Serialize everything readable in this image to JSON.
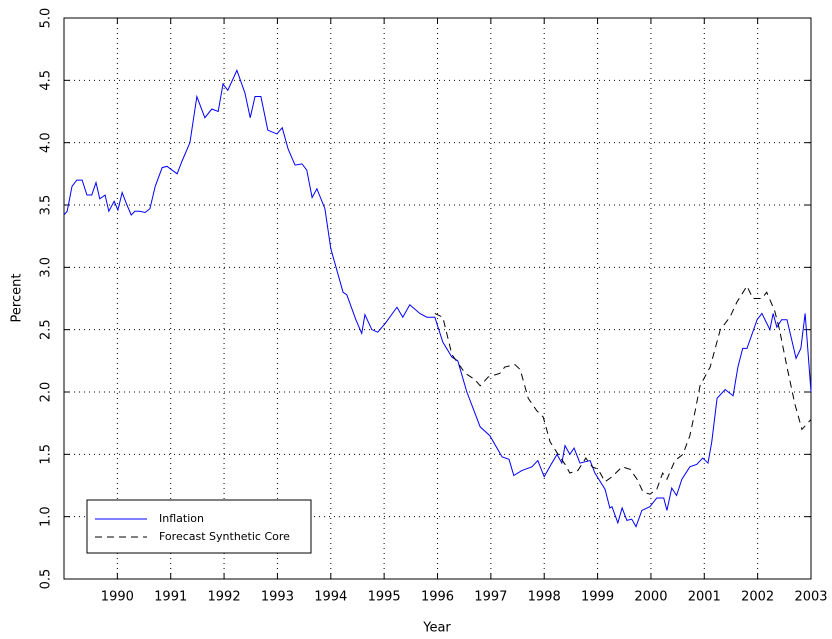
{
  "chart_data": {
    "type": "line",
    "x_label": "Year",
    "y_label": "Percent",
    "xlim": [
      1989,
      2003
    ],
    "xticks": [
      1990,
      1991,
      1992,
      1993,
      1994,
      1995,
      1996,
      1997,
      1998,
      1999,
      2000,
      2001,
      2002,
      2003
    ],
    "ylim": [
      0.5,
      5
    ],
    "yticks": [
      0.5,
      {
        "value": 1,
        "label": "1.0"
      },
      1.5,
      {
        "value": 2,
        "label": "2.0"
      },
      2.5,
      {
        "value": 3,
        "label": "3.0"
      },
      3.5,
      {
        "value": 4,
        "label": "4.0"
      },
      4.5,
      {
        "value": 5,
        "label": "5.0"
      }
    ],
    "grid": true,
    "legend": "lower left",
    "series": [
      {
        "name": "Inflation",
        "color": "#0000ff",
        "dash": "solid",
        "x": [
          1989.0,
          1989.06,
          1989.15,
          1989.24,
          1989.34,
          1989.43,
          1989.52,
          1989.6,
          1989.67,
          1989.77,
          1989.84,
          1989.94,
          1990.01,
          1990.09,
          1990.18,
          1990.26,
          1990.33,
          1990.42,
          1990.52,
          1990.61,
          1990.71,
          1990.84,
          1990.93,
          1991.12,
          1991.21,
          1991.36,
          1991.49,
          1991.64,
          1991.77,
          1991.89,
          1991.98,
          1992.07,
          1992.24,
          1992.39,
          1992.49,
          1992.58,
          1992.69,
          1992.82,
          1992.99,
          1993.09,
          1993.2,
          1993.33,
          1993.46,
          1993.55,
          1993.65,
          1993.74,
          1993.89,
          1994.0,
          1994.23,
          1994.3,
          1994.47,
          1994.58,
          1994.64,
          1994.77,
          1994.88,
          1995.02,
          1995.24,
          1995.35,
          1995.48,
          1995.67,
          1995.8,
          1995.95,
          1996.1,
          1996.27,
          1996.38,
          1996.55,
          1996.8,
          1996.98,
          1997.21,
          1997.34,
          1997.43,
          1997.58,
          1997.77,
          1997.88,
          1998.0,
          1998.13,
          1998.24,
          1998.33,
          1998.39,
          1998.48,
          1998.56,
          1998.67,
          1998.86,
          1998.95,
          1999.14,
          1999.23,
          1999.27,
          1999.38,
          1999.46,
          1999.55,
          1999.64,
          1999.72,
          1999.83,
          1999.98,
          2000.11,
          2000.24,
          2000.3,
          2000.39,
          2000.48,
          2000.58,
          2000.73,
          2000.86,
          2000.97,
          2001.07,
          2001.14,
          2001.24,
          2001.39,
          2001.54,
          2001.63,
          2001.72,
          2001.8,
          2001.99,
          2002.08,
          2002.23,
          2002.29,
          2002.36,
          2002.45,
          2002.55,
          2002.72,
          2002.81,
          2002.89,
          2003.0
        ],
        "values": [
          3.42,
          3.45,
          3.65,
          3.7,
          3.7,
          3.58,
          3.58,
          3.68,
          3.55,
          3.58,
          3.45,
          3.53,
          3.46,
          3.6,
          3.5,
          3.42,
          3.45,
          3.45,
          3.44,
          3.47,
          3.65,
          3.8,
          3.81,
          3.75,
          3.85,
          4.0,
          4.37,
          4.2,
          4.27,
          4.25,
          4.47,
          4.42,
          4.58,
          4.4,
          4.2,
          4.37,
          4.37,
          4.1,
          4.07,
          4.12,
          3.95,
          3.82,
          3.83,
          3.78,
          3.56,
          3.63,
          3.47,
          3.15,
          2.8,
          2.78,
          2.58,
          2.47,
          2.62,
          2.5,
          2.48,
          2.55,
          2.68,
          2.6,
          2.7,
          2.63,
          2.6,
          2.6,
          2.4,
          2.28,
          2.25,
          2.0,
          1.72,
          1.65,
          1.48,
          1.46,
          1.33,
          1.37,
          1.4,
          1.45,
          1.32,
          1.42,
          1.5,
          1.43,
          1.57,
          1.5,
          1.55,
          1.43,
          1.45,
          1.35,
          1.22,
          1.07,
          1.08,
          0.95,
          1.07,
          0.97,
          0.98,
          0.92,
          1.05,
          1.08,
          1.15,
          1.15,
          1.05,
          1.23,
          1.17,
          1.3,
          1.4,
          1.42,
          1.47,
          1.43,
          1.6,
          1.95,
          2.02,
          1.97,
          2.2,
          2.35,
          2.35,
          2.58,
          2.63,
          2.5,
          2.63,
          2.52,
          2.58,
          2.58,
          2.27,
          2.35,
          2.63,
          2.0
        ]
      },
      {
        "name": "Forecast Synthetic Core",
        "color": "#000000",
        "dash": "dashed",
        "x": [
          1995.95,
          1996.1,
          1996.27,
          1996.52,
          1996.7,
          1996.8,
          1996.95,
          1997.17,
          1997.26,
          1997.45,
          1997.55,
          1997.7,
          1997.86,
          1997.98,
          1998.11,
          1998.26,
          1998.39,
          1998.48,
          1998.63,
          1998.78,
          1998.9,
          1999.01,
          1999.14,
          1999.27,
          1999.46,
          1999.61,
          1999.74,
          1999.85,
          1999.98,
          2000.11,
          2000.22,
          2000.3,
          2000.45,
          2000.6,
          2000.73,
          2000.83,
          2000.92,
          2001.11,
          2001.3,
          2001.48,
          2001.61,
          2001.8,
          2001.91,
          2002.08,
          2002.17,
          2002.32,
          2002.41,
          2002.55,
          2002.7,
          2002.83,
          2003.0
        ],
        "values": [
          2.63,
          2.6,
          2.3,
          2.15,
          2.1,
          2.05,
          2.12,
          2.15,
          2.2,
          2.22,
          2.18,
          1.95,
          1.85,
          1.8,
          1.6,
          1.5,
          1.42,
          1.35,
          1.37,
          1.47,
          1.4,
          1.38,
          1.28,
          1.32,
          1.4,
          1.38,
          1.3,
          1.2,
          1.18,
          1.22,
          1.35,
          1.3,
          1.45,
          1.5,
          1.65,
          1.85,
          2.05,
          2.2,
          2.5,
          2.6,
          2.72,
          2.85,
          2.75,
          2.75,
          2.8,
          2.65,
          2.5,
          2.2,
          1.9,
          1.7,
          1.78
        ]
      }
    ]
  }
}
